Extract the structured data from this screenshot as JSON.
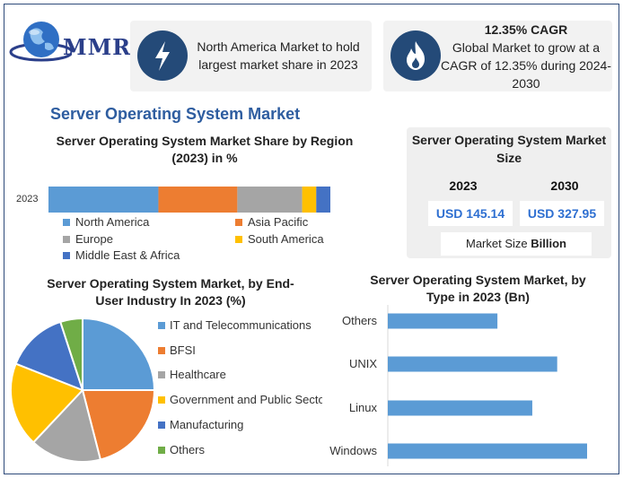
{
  "brand": {
    "logo_text": "MMR"
  },
  "cards": [
    {
      "text": "North America Market to hold largest market share in 2023",
      "icon": "lightning-icon"
    },
    {
      "headline": "12.35% CAGR",
      "text": "Global Market to grow at a CAGR of 12.35% during 2024-2030",
      "icon": "flame-icon"
    }
  ],
  "main_title": "Server Operating System Market",
  "market_size": {
    "title": "Server Operating System Market Size",
    "year_a": "2023",
    "year_b": "2030",
    "value_a": "USD 145.14",
    "value_b": "USD 327.95",
    "unit_prefix": "Market Size",
    "unit_bold": "Billion"
  },
  "colors": {
    "blue": "#5b9bd5",
    "orange": "#ed7d31",
    "gray": "#a5a5a5",
    "yellow": "#ffc000",
    "darkblue": "#4472c4",
    "green": "#70ad47",
    "navy": "#244a78"
  },
  "chart_data": [
    {
      "type": "bar",
      "orientation": "horizontal-stacked",
      "title": "Server Operating System Market Share by Region (2023) in %",
      "categories": [
        "2023"
      ],
      "series": [
        {
          "name": "North America",
          "values": [
            39
          ],
          "color": "#5b9bd5"
        },
        {
          "name": "Asia Pacific",
          "values": [
            28
          ],
          "color": "#ed7d31"
        },
        {
          "name": "Europe",
          "values": [
            23
          ],
          "color": "#a5a5a5"
        },
        {
          "name": "South America",
          "values": [
            5
          ],
          "color": "#ffc000"
        },
        {
          "name": "Middle East & Africa",
          "values": [
            5
          ],
          "color": "#4472c4"
        }
      ],
      "legend": "bottom"
    },
    {
      "type": "pie",
      "title": "Server Operating System Market, by End-User Industry In 2023 (%)",
      "labels": [
        "IT and Telecommunications",
        "BFSI",
        "Healthcare",
        "Government and Public Sector",
        "Manufacturing",
        "Others"
      ],
      "values": [
        25,
        21,
        16,
        19,
        14,
        5
      ],
      "colors": [
        "#5b9bd5",
        "#ed7d31",
        "#a5a5a5",
        "#ffc000",
        "#4472c4",
        "#70ad47"
      ],
      "legend": "right"
    },
    {
      "type": "bar",
      "orientation": "horizontal",
      "title": "Server Operating System Market, by Type in 2023 (Bn)",
      "categories": [
        "Others",
        "UNIX",
        "Linux",
        "Windows"
      ],
      "values": [
        22,
        34,
        29,
        40
      ],
      "color": "#5b9bd5"
    }
  ]
}
